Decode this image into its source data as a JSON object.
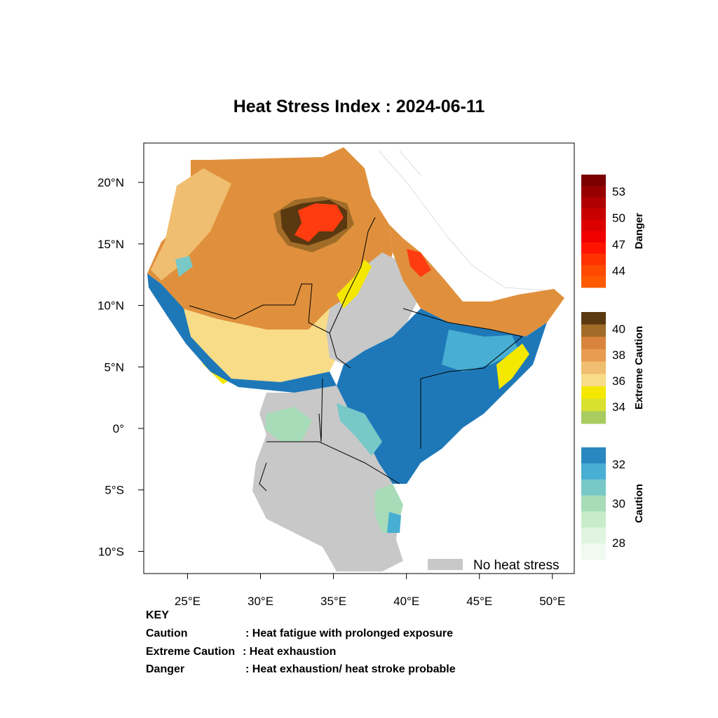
{
  "title": "Heat Stress Index : 2024-06-11",
  "map": {
    "lon_range": [
      22,
      51.5
    ],
    "lat_range": [
      -11.8,
      23.2
    ],
    "x_ticks": [
      {
        "value": 25,
        "label": "25°E"
      },
      {
        "value": 30,
        "label": "30°E"
      },
      {
        "value": 35,
        "label": "35°E"
      },
      {
        "value": 40,
        "label": "40°E"
      },
      {
        "value": 45,
        "label": "45°E"
      },
      {
        "value": 50,
        "label": "50°E"
      }
    ],
    "y_ticks": [
      {
        "value": 20,
        "label": "20°N"
      },
      {
        "value": 15,
        "label": "15°N"
      },
      {
        "value": 10,
        "label": "10°N"
      },
      {
        "value": 5,
        "label": "5°N"
      },
      {
        "value": 0,
        "label": "0°"
      },
      {
        "value": -5,
        "label": "5°S"
      },
      {
        "value": -10,
        "label": "10°S"
      }
    ],
    "no_heat_stress_legend": "No heat stress",
    "colors": {
      "no_stress": "#c8c8c8",
      "caution_light": "#a8dcb8",
      "caution_mid": "#78c8c8",
      "caution_dark": "#1e78b8",
      "caution_blue": "#3ca0d0",
      "extreme_yellow": "#f5e800",
      "extreme_pale": "#f8dc88",
      "extreme_tan": "#f0be70",
      "extreme_orange": "#e0903c",
      "extreme_brown": "#a06c28",
      "extreme_dark": "#5a3810",
      "danger_red": "#ff3c10",
      "danger_crimson": "#c81010"
    }
  },
  "colorbars": [
    {
      "name": "Danger",
      "labels": [
        "53",
        "50",
        "47",
        "44"
      ],
      "colors": [
        "#7a0000",
        "#960000",
        "#b00000",
        "#c80000",
        "#dc0000",
        "#f00000",
        "#ff1400",
        "#ff3200",
        "#ff4a00",
        "#ff5a00"
      ]
    },
    {
      "name": "Extreme Caution",
      "labels": [
        "40",
        "38",
        "36",
        "34"
      ],
      "colors": [
        "#5a3810",
        "#a06c28",
        "#d9843c",
        "#e89c50",
        "#f0be70",
        "#f8dc88",
        "#f5e800",
        "#d8e030",
        "#a8cc60"
      ]
    },
    {
      "name": "Caution",
      "labels": [
        "32",
        "30",
        "28"
      ],
      "colors": [
        "#2a88c0",
        "#48aed4",
        "#78c8c8",
        "#a8dcb8",
        "#c8ecc8",
        "#e0f4e0",
        "#f0faf0"
      ]
    }
  ],
  "key": {
    "heading": "KEY",
    "rows": [
      {
        "term": "Caution",
        "desc": ": Heat fatigue with prolonged exposure"
      },
      {
        "term": "Extreme Caution",
        "desc": " : Heat exhaustion"
      },
      {
        "term": "Danger",
        "desc": ": Heat exhaustion/ heat stroke probable"
      }
    ]
  }
}
